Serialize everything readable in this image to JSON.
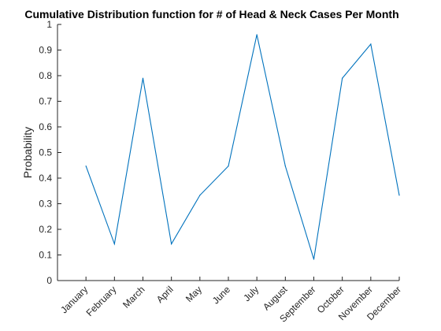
{
  "chart_data": {
    "type": "line",
    "title": "Cumulative Distribution function for # of Head & Neck Cases Per Month",
    "xlabel": "",
    "ylabel": "Probability",
    "categories": [
      "January",
      "February",
      "March",
      "April",
      "May",
      "June",
      "July",
      "August",
      "September",
      "October",
      "November",
      "December"
    ],
    "series": [
      {
        "values": [
          0.447,
          0.143,
          0.79,
          0.143,
          0.333,
          0.447,
          0.96,
          0.447,
          0.083,
          0.79,
          0.923,
          0.333
        ]
      }
    ],
    "ylim": [
      0,
      1
    ],
    "yticks": [
      "0",
      "0.1",
      "0.2",
      "0.3",
      "0.4",
      "0.5",
      "0.6",
      "0.7",
      "0.8",
      "0.9",
      "1"
    ],
    "grid": false,
    "colors": {
      "series": "#0072bd",
      "axes": "#262626"
    }
  }
}
